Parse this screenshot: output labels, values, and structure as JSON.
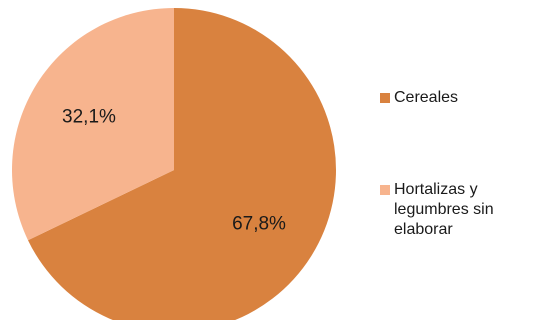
{
  "chart_data": {
    "type": "pie",
    "title": "",
    "slices": [
      {
        "label": "Cereales",
        "value": 67.8,
        "display": "67,8%",
        "color": "#D9823F"
      },
      {
        "label": "Hortalizas y legumbres sin elaborar",
        "value": 32.1,
        "display": "32,1%",
        "color": "#F7B48E"
      }
    ],
    "legend_position": "right"
  }
}
